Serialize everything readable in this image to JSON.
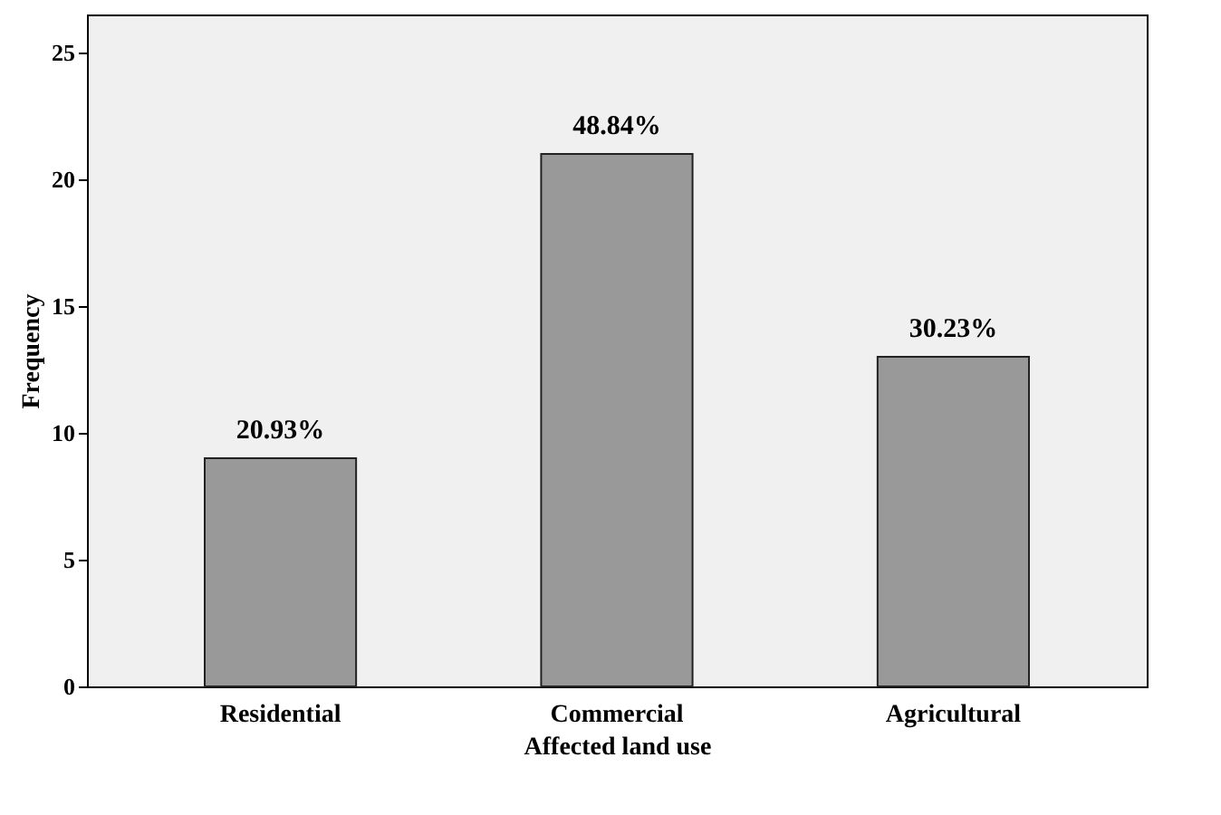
{
  "chart_data": {
    "type": "bar",
    "xlabel": "Affected land use",
    "ylabel": "Frequency",
    "categories": [
      "Residential",
      "Commercial",
      "Agricultural"
    ],
    "values": [
      9,
      21,
      13
    ],
    "annotations": [
      {
        "text": "20.93%",
        "x": "Residential",
        "y": 9
      },
      {
        "text": "48.84%",
        "x": "Commercial",
        "y": 21
      },
      {
        "text": "30.23%",
        "x": "Agricultural",
        "y": 13
      }
    ],
    "color": "#999999",
    "ylim": [
      0,
      26.5
    ],
    "yticks": [
      0,
      5,
      10,
      15,
      20,
      25
    ],
    "grid": false
  }
}
